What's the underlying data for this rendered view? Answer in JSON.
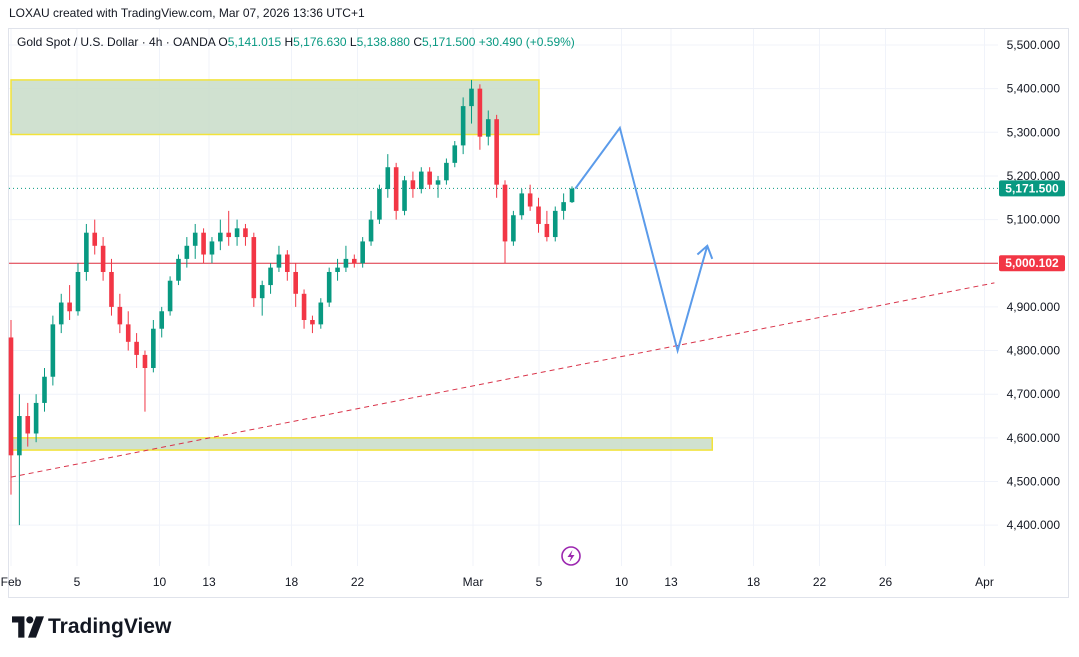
{
  "header": {
    "attribution": "LOXAU created with TradingView.com, Mar 07, 2026 13:36 UTC+1"
  },
  "legend": {
    "symbol": "Gold Spot / U.S. Dollar · 4h · OANDA",
    "open_label": "O",
    "open": "5,141.015",
    "high_label": "H",
    "high": "5,176.630",
    "low_label": "L",
    "low": "5,138.880",
    "close_label": "C",
    "close": "5,171.500",
    "change": "+30.490 (+0.59%)"
  },
  "footer": {
    "brand": "TradingView"
  },
  "colors": {
    "up": "#089981",
    "down": "#f23645",
    "zone_fill": "#c8dcc8",
    "zone_border": "#f2e33a",
    "level_line": "#e0313f",
    "trend_line": "#d9344a",
    "projection": "#5b9bea",
    "price_badge": "#089981",
    "level_badge": "#f23645"
  },
  "chart_data": {
    "type": "candlestick",
    "title": "Gold Spot / U.S. Dollar · 4h · OANDA",
    "ylim": [
      4300,
      5560
    ],
    "y_ticks": [
      {
        "value": 5500,
        "label": "5,500.000"
      },
      {
        "value": 5400,
        "label": "5,400.000"
      },
      {
        "value": 5300,
        "label": "5,300.000"
      },
      {
        "value": 5200,
        "label": "5,200.000"
      },
      {
        "value": 5100,
        "label": "5,100.000"
      },
      {
        "value": 5000,
        "label": "5,000.000"
      },
      {
        "value": 4900,
        "label": "4,900.000"
      },
      {
        "value": 4800,
        "label": "4,800.000"
      },
      {
        "value": 4700,
        "label": "4,700.000"
      },
      {
        "value": 4600,
        "label": "4,600.000"
      },
      {
        "value": 4500,
        "label": "4,500.000"
      },
      {
        "value": 4400,
        "label": "4,400.000"
      }
    ],
    "x_ticks": [
      {
        "day": 1,
        "label": "Feb"
      },
      {
        "day": 5,
        "label": "5"
      },
      {
        "day": 10,
        "label": "10"
      },
      {
        "day": 13,
        "label": "13"
      },
      {
        "day": 18,
        "label": "18"
      },
      {
        "day": 22,
        "label": "22"
      },
      {
        "day": 29,
        "label": "Mar"
      },
      {
        "day": 33,
        "label": "5"
      },
      {
        "day": 38,
        "label": "10"
      },
      {
        "day": 41,
        "label": "13"
      },
      {
        "day": 46,
        "label": "18"
      },
      {
        "day": 50,
        "label": "22"
      },
      {
        "day": 54,
        "label": "26"
      },
      {
        "day": 60,
        "label": "Apr"
      }
    ],
    "current_price": {
      "value": 5171.5,
      "label": "5,171.500"
    },
    "horizontal_level": {
      "value": 5000.102,
      "label": "5,000.102"
    },
    "trendline": {
      "start": {
        "day": 1.0,
        "price": 4510
      },
      "end": {
        "day": 60.6,
        "price": 4955
      }
    },
    "zones": [
      {
        "name": "resistance-zone",
        "day_start": 1.0,
        "day_end": 33.0,
        "price_low": 5295,
        "price_high": 5420
      },
      {
        "name": "support-zone",
        "day_start": 1.0,
        "day_end": 43.5,
        "price_low": 4572,
        "price_high": 4600
      }
    ],
    "projection_path": [
      {
        "day": 35.2,
        "price": 5171
      },
      {
        "day": 37.9,
        "price": 5310
      },
      {
        "day": 41.4,
        "price": 4800
      },
      {
        "day": 43.2,
        "price": 5040
      }
    ],
    "projection_arrow_wing": [
      {
        "day": 42.6,
        "price": 5020
      },
      {
        "day": 43.2,
        "price": 5040
      },
      {
        "day": 43.5,
        "price": 5010
      }
    ],
    "candles_ohlc": [
      [
        4830,
        4870,
        4470,
        4560
      ],
      [
        4560,
        4700,
        4400,
        4650
      ],
      [
        4650,
        4680,
        4580,
        4610
      ],
      [
        4610,
        4700,
        4590,
        4680
      ],
      [
        4680,
        4760,
        4660,
        4740
      ],
      [
        4740,
        4880,
        4720,
        4860
      ],
      [
        4860,
        4930,
        4840,
        4910
      ],
      [
        4910,
        4950,
        4870,
        4890
      ],
      [
        4890,
        5000,
        4880,
        4980
      ],
      [
        4980,
        5090,
        4960,
        5070
      ],
      [
        5070,
        5100,
        5020,
        5040
      ],
      [
        5040,
        5060,
        4960,
        4980
      ],
      [
        4980,
        5010,
        4880,
        4900
      ],
      [
        4900,
        4930,
        4840,
        4860
      ],
      [
        4860,
        4890,
        4800,
        4820
      ],
      [
        4820,
        4840,
        4760,
        4790
      ],
      [
        4790,
        4800,
        4660,
        4760
      ],
      [
        4760,
        4870,
        4750,
        4850
      ],
      [
        4850,
        4900,
        4830,
        4890
      ],
      [
        4890,
        4970,
        4880,
        4960
      ],
      [
        4960,
        5020,
        4950,
        5010
      ],
      [
        5010,
        5060,
        4990,
        5040
      ],
      [
        5040,
        5090,
        5010,
        5070
      ],
      [
        5070,
        5080,
        5000,
        5020
      ],
      [
        5020,
        5060,
        5000,
        5050
      ],
      [
        5050,
        5100,
        5030,
        5070
      ],
      [
        5070,
        5120,
        5040,
        5060
      ],
      [
        5060,
        5100,
        5040,
        5080
      ],
      [
        5080,
        5090,
        5040,
        5060
      ],
      [
        5060,
        5070,
        4900,
        4920
      ],
      [
        4920,
        4960,
        4880,
        4950
      ],
      [
        4950,
        5000,
        4930,
        4990
      ],
      [
        4990,
        5040,
        4980,
        5020
      ],
      [
        5020,
        5030,
        4960,
        4980
      ],
      [
        4980,
        5000,
        4900,
        4930
      ],
      [
        4930,
        4940,
        4850,
        4870
      ],
      [
        4870,
        4880,
        4840,
        4860
      ],
      [
        4860,
        4920,
        4850,
        4910
      ],
      [
        4910,
        4990,
        4900,
        4980
      ],
      [
        4980,
        5010,
        4960,
        4990
      ],
      [
        4990,
        5040,
        4980,
        5010
      ],
      [
        5010,
        5020,
        4990,
        5000
      ],
      [
        5000,
        5060,
        4990,
        5050
      ],
      [
        5050,
        5120,
        5040,
        5100
      ],
      [
        5100,
        5180,
        5090,
        5170
      ],
      [
        5170,
        5250,
        5150,
        5220
      ],
      [
        5220,
        5230,
        5100,
        5120
      ],
      [
        5120,
        5200,
        5110,
        5190
      ],
      [
        5190,
        5210,
        5150,
        5170
      ],
      [
        5170,
        5220,
        5160,
        5210
      ],
      [
        5210,
        5220,
        5170,
        5180
      ],
      [
        5180,
        5200,
        5150,
        5190
      ],
      [
        5190,
        5240,
        5180,
        5230
      ],
      [
        5230,
        5280,
        5220,
        5270
      ],
      [
        5270,
        5380,
        5250,
        5360
      ],
      [
        5360,
        5420,
        5320,
        5400
      ],
      [
        5400,
        5410,
        5260,
        5290
      ],
      [
        5290,
        5350,
        5270,
        5330
      ],
      [
        5330,
        5340,
        5150,
        5180
      ],
      [
        5180,
        5190,
        5000,
        5050
      ],
      [
        5050,
        5120,
        5040,
        5110
      ],
      [
        5110,
        5170,
        5100,
        5160
      ],
      [
        5160,
        5180,
        5120,
        5130
      ],
      [
        5130,
        5150,
        5070,
        5090
      ],
      [
        5090,
        5120,
        5050,
        5060
      ],
      [
        5060,
        5130,
        5050,
        5120
      ],
      [
        5120,
        5160,
        5100,
        5140
      ],
      [
        5140,
        5176,
        5138,
        5171
      ]
    ],
    "candle_day_start": 1.0,
    "candle_day_end": 35.0
  }
}
